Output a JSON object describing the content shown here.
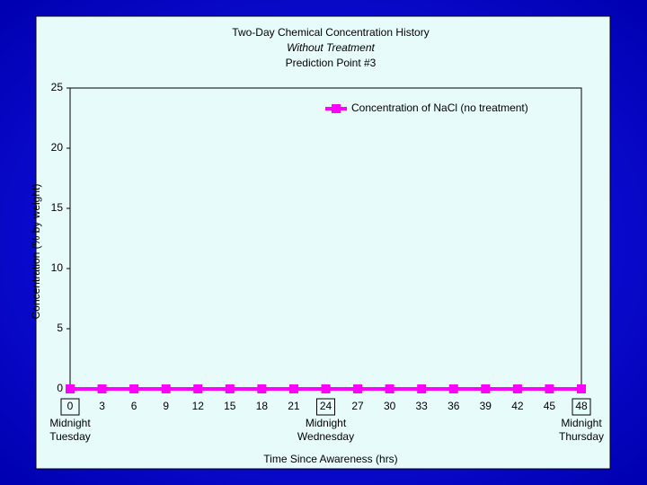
{
  "chart_data": {
    "type": "line",
    "title": "Two-Day Chemical Concentration History",
    "subtitle": [
      "Without Treatment",
      "Prediction Point #3"
    ],
    "x_label": "Time Since Awareness (hrs)",
    "y_label": "Concentration (% by weight)",
    "x": [
      0,
      3,
      6,
      9,
      12,
      15,
      18,
      21,
      24,
      27,
      30,
      33,
      36,
      39,
      42,
      45,
      48
    ],
    "series": [
      {
        "name": "Concentration of NaCl (no treatment)",
        "color": "#ff00ff",
        "values": [
          0,
          0,
          0,
          0,
          0,
          0,
          0,
          0,
          0,
          0,
          0,
          0,
          0,
          0,
          0,
          0,
          0
        ]
      }
    ],
    "xlim": [
      0,
      48
    ],
    "xticks": [
      0,
      3,
      6,
      9,
      12,
      15,
      18,
      21,
      24,
      27,
      30,
      33,
      36,
      39,
      42,
      45,
      48
    ],
    "ylim": [
      0,
      25
    ],
    "yticks": [
      0,
      5,
      10,
      15,
      20,
      25
    ],
    "grid": false,
    "legend": "top-right",
    "annotations": [
      {
        "x": 0,
        "lines": [
          "Midnight",
          "Tuesday"
        ]
      },
      {
        "x": 24,
        "lines": [
          "Midnight",
          "Wednesday"
        ]
      },
      {
        "x": 48,
        "lines": [
          "Midnight",
          "Thursday"
        ]
      }
    ]
  }
}
